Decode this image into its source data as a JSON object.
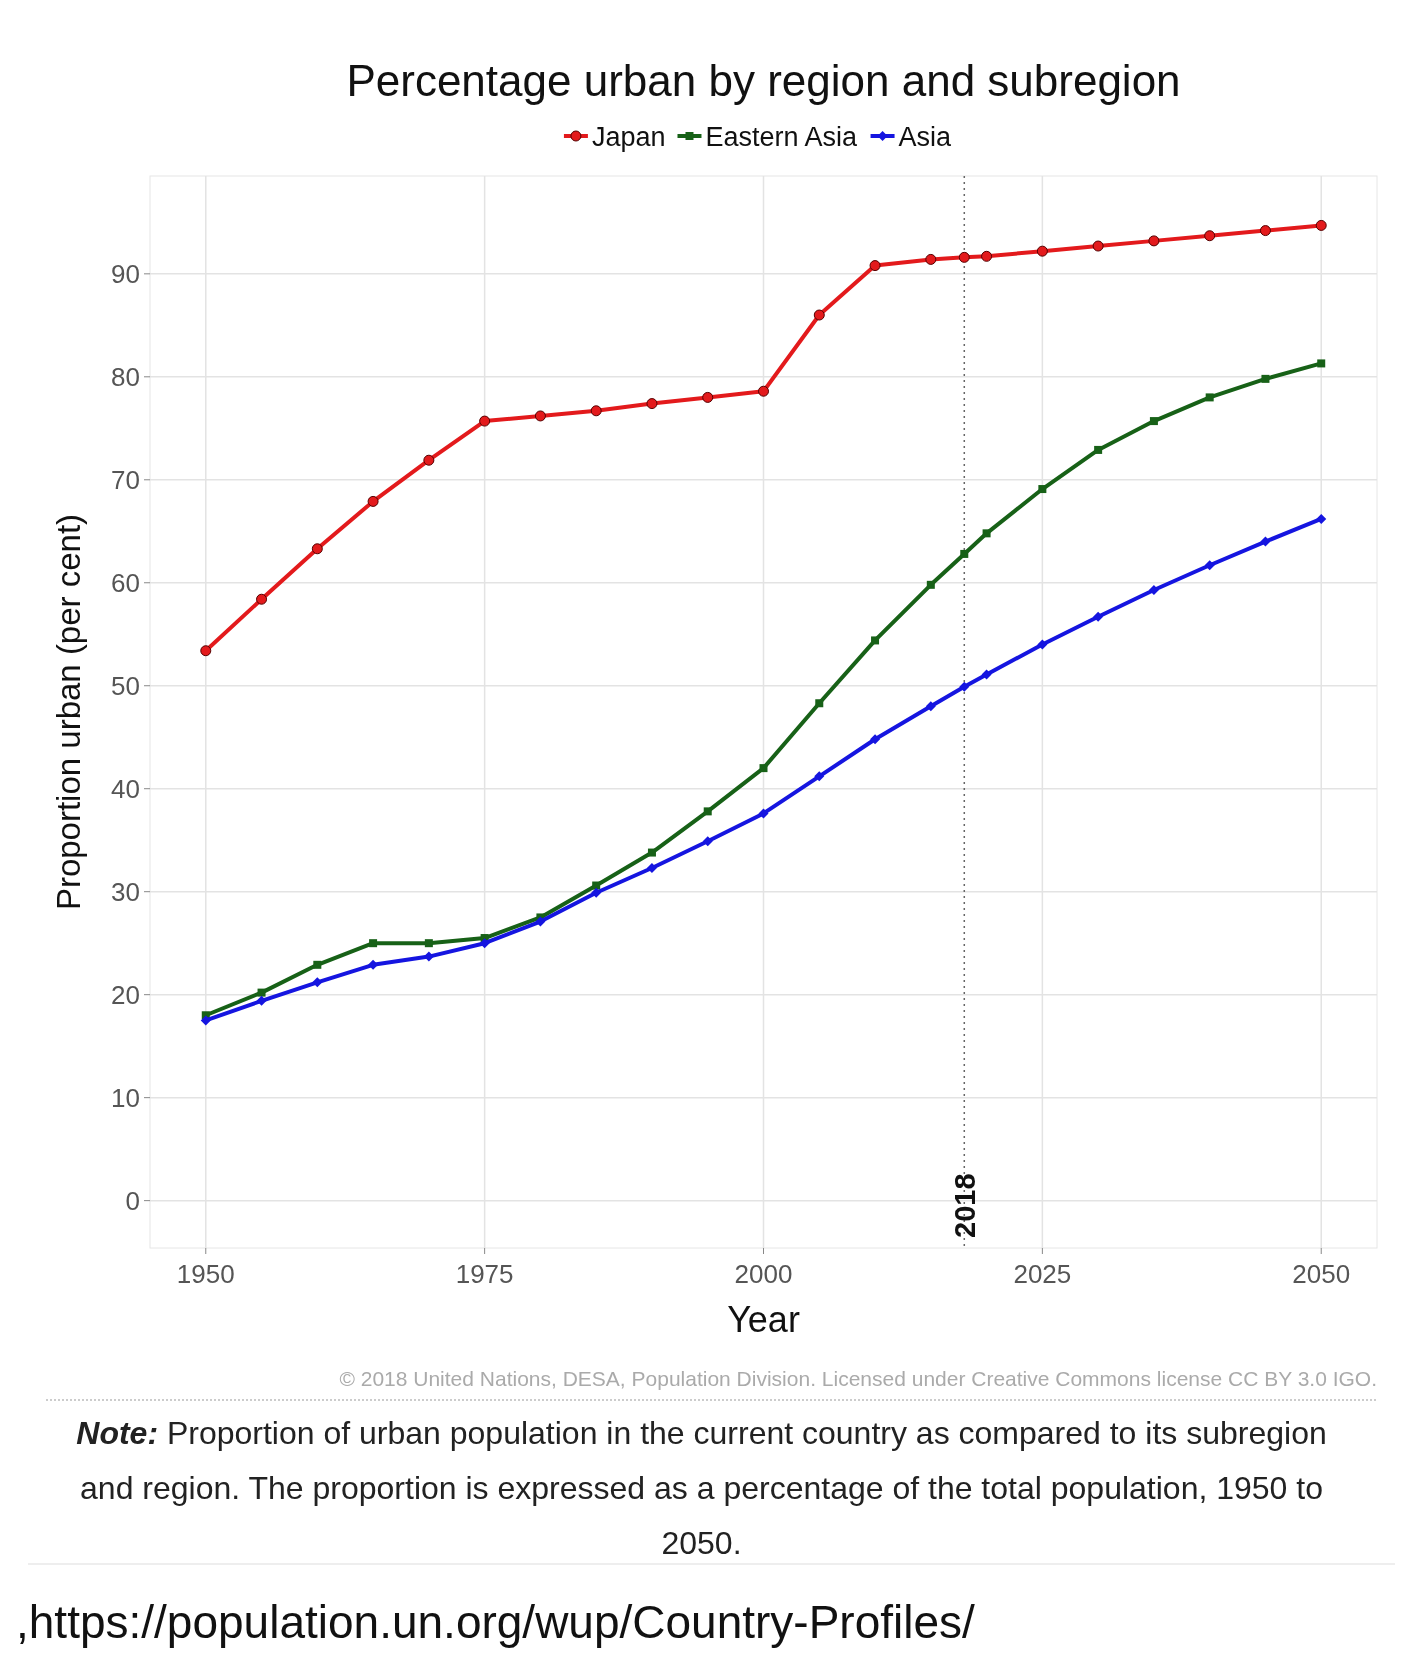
{
  "chart_data": {
    "type": "line",
    "title": "Percentage urban by region and subregion",
    "xlabel": "Year",
    "ylabel": "Proportion urban (per cent)",
    "x": [
      1950,
      1955,
      1960,
      1965,
      1970,
      1975,
      1980,
      1985,
      1990,
      1995,
      2000,
      2005,
      2010,
      2015,
      2018,
      2020,
      2025,
      2030,
      2035,
      2040,
      2045,
      2050
    ],
    "series": [
      {
        "name": "Japan",
        "color": "#e31a1c",
        "marker": "circle",
        "values": [
          53.4,
          58.4,
          63.3,
          67.9,
          71.9,
          75.7,
          76.2,
          76.7,
          77.4,
          78.0,
          78.6,
          86.0,
          90.8,
          91.4,
          91.6,
          91.7,
          92.2,
          92.7,
          93.2,
          93.7,
          94.2,
          94.7
        ]
      },
      {
        "name": "Eastern Asia",
        "color": "#176117",
        "marker": "square",
        "values": [
          18.0,
          20.2,
          22.9,
          25.0,
          25.0,
          25.5,
          27.5,
          30.6,
          33.8,
          37.8,
          42.0,
          48.3,
          54.4,
          59.8,
          62.8,
          64.8,
          69.1,
          72.9,
          75.7,
          78.0,
          79.8,
          81.3
        ]
      },
      {
        "name": "Asia",
        "color": "#1515e0",
        "marker": "diamond",
        "values": [
          17.5,
          19.4,
          21.2,
          22.9,
          23.7,
          25.0,
          27.1,
          29.9,
          32.3,
          34.9,
          37.6,
          41.2,
          44.8,
          48.0,
          49.9,
          51.1,
          54.0,
          56.7,
          59.3,
          61.7,
          64.0,
          66.2
        ]
      }
    ],
    "xlim": [
      1945,
      2055
    ],
    "xticks": [
      1950,
      1975,
      2000,
      2025,
      2050
    ],
    "ylim": [
      -4.6,
      99.5
    ],
    "yticks": [
      0,
      10,
      20,
      30,
      40,
      50,
      60,
      70,
      80,
      90
    ],
    "grid": true,
    "legend": "top",
    "line_style": "solid",
    "ref_lines": [
      {
        "axis": "x",
        "value": 2018,
        "label": "2018",
        "color": "#666666",
        "line_style": "dotted"
      }
    ],
    "annotations": [
      "© 2018 United Nations, DESA, Population Division. Licensed under Creative Commons license CC BY 3.0 IGO.",
      "Note: Proportion of urban population in the current country as compared to its subregion and region. The proportion is expressed as a percentage of the total population, 1950 to 2050.",
      ",https://population.un.org/wup/Country-Profiles/"
    ]
  }
}
